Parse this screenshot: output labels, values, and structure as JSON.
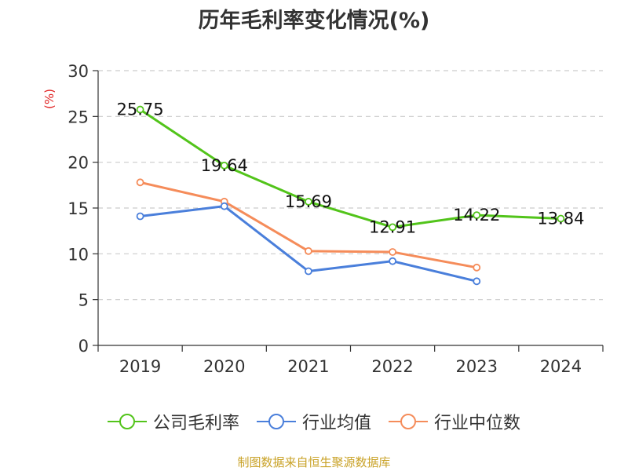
{
  "chart_data": {
    "type": "line",
    "title": "历年毛利率变化情况(%)",
    "ylabel": "(%)",
    "categories": [
      "2019",
      "2020",
      "2021",
      "2022",
      "2023",
      "2024"
    ],
    "ylim": [
      0,
      30
    ],
    "yticks": [
      0,
      5,
      10,
      15,
      20,
      25,
      30
    ],
    "grid": true,
    "legend_position": "bottom",
    "series": [
      {
        "name": "公司毛利率",
        "color": "#52c41a",
        "values": [
          25.75,
          19.64,
          15.69,
          12.91,
          14.22,
          13.84
        ],
        "labels": [
          "25.75",
          "19.64",
          "15.69",
          "12.91",
          "14.22",
          "13.84"
        ]
      },
      {
        "name": "行业均值",
        "color": "#4a7fdb",
        "values": [
          14.1,
          15.2,
          8.1,
          9.2,
          7.0,
          null
        ]
      },
      {
        "name": "行业中位数",
        "color": "#f58c5a",
        "values": [
          17.8,
          15.7,
          10.3,
          10.2,
          8.5,
          null
        ]
      }
    ]
  },
  "source": "制图数据来自恒生聚源数据库"
}
